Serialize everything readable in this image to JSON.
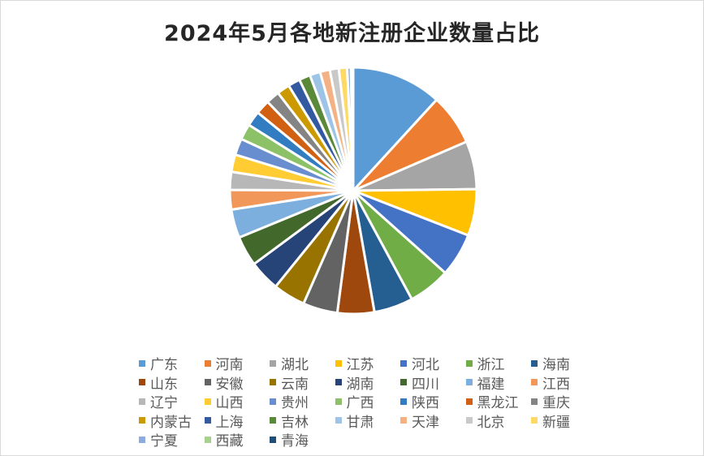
{
  "chart_data": {
    "type": "pie",
    "title": "2024年5月各地新注册企业数量占比",
    "legend_position": "bottom",
    "categories": [
      "广东",
      "河南",
      "湖北",
      "江苏",
      "河北",
      "浙江",
      "海南",
      "山东",
      "安徽",
      "云南",
      "湖南",
      "四川",
      "福建",
      "江西",
      "辽宁",
      "山西",
      "贵州",
      "广西",
      "陕西",
      "黑龙江",
      "重庆",
      "内蒙古",
      "上海",
      "吉林",
      "甘肃",
      "天津",
      "北京",
      "新疆",
      "宁夏",
      "西藏",
      "青海"
    ],
    "values": [
      12.0,
      6.8,
      6.4,
      6.2,
      5.8,
      5.6,
      5.2,
      4.9,
      4.6,
      4.3,
      4.1,
      4.0,
      3.8,
      2.6,
      2.4,
      2.3,
      2.2,
      2.1,
      2.0,
      1.9,
      1.8,
      1.7,
      1.6,
      1.5,
      1.4,
      1.3,
      1.2,
      1.1,
      0.5,
      0.2,
      0.1
    ],
    "unit": "%",
    "colors": [
      "#5b9bd5",
      "#ed7d31",
      "#a5a5a5",
      "#ffc000",
      "#4472c4",
      "#70ad47",
      "#255e91",
      "#9e480e",
      "#636363",
      "#997300",
      "#264478",
      "#43682b",
      "#7cafdd",
      "#f1975a",
      "#b7b7b7",
      "#ffcd33",
      "#698ed0",
      "#8cc168",
      "#327dc2",
      "#d26012",
      "#848484",
      "#cc9a00",
      "#335aa1",
      "#5a8a39",
      "#9dc3e6",
      "#f4b183",
      "#c9c9c9",
      "#ffd966",
      "#8faadc",
      "#a9d18e",
      "#1f4e79"
    ]
  },
  "legend": {
    "items": [
      "广东",
      "河南",
      "湖北",
      "江苏",
      "河北",
      "浙江",
      "海南",
      "山东",
      "安徽",
      "云南",
      "湖南",
      "四川",
      "福建",
      "江西",
      "辽宁",
      "山西",
      "贵州",
      "广西",
      "陕西",
      "黑龙江",
      "重庆",
      "内蒙古",
      "上海",
      "吉林",
      "甘肃",
      "天津",
      "北京",
      "新疆",
      "宁夏",
      "西藏",
      "青海"
    ]
  }
}
